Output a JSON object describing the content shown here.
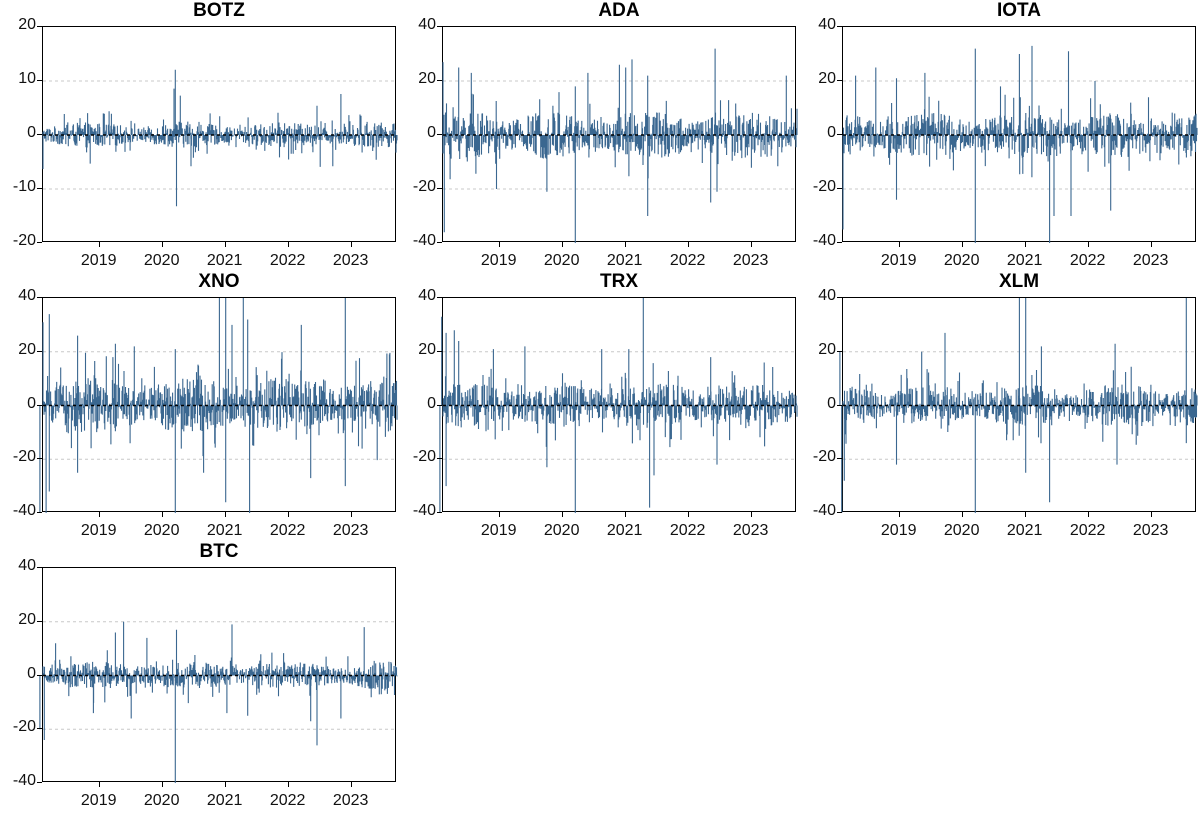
{
  "chart_data": [
    {
      "type": "line",
      "title": "BOTZ",
      "xlabel": "",
      "ylabel": "",
      "ylim": [
        -20,
        20
      ],
      "yticks": [
        -20,
        -10,
        0,
        10,
        20
      ],
      "xticks": [
        "2019",
        "2020",
        "2021",
        "2022",
        "2023"
      ],
      "xrange": [
        "2018-02",
        "2023-09"
      ],
      "grid": "horizontal dotted",
      "zero_line": "dashed black",
      "scale": 1.8,
      "spikes": [
        {
          "x": 2018.1,
          "y": -6.3
        },
        {
          "x": 2018.85,
          "y": -5.3
        },
        {
          "x": 2019.15,
          "y": 4.4
        },
        {
          "x": 2020.2,
          "y": 12.1
        },
        {
          "x": 2020.18,
          "y": 8.6
        },
        {
          "x": 2020.22,
          "y": -13.2
        },
        {
          "x": 2020.28,
          "y": 7.3
        },
        {
          "x": 2020.45,
          "y": -5.8
        },
        {
          "x": 2022.45,
          "y": 5.4
        },
        {
          "x": 2022.5,
          "y": -5.9
        },
        {
          "x": 2022.83,
          "y": 7.6
        },
        {
          "x": 2022.7,
          "y": -5.8
        }
      ]
    },
    {
      "type": "line",
      "title": "ADA",
      "ylim": [
        -40,
        40
      ],
      "yticks": [
        -40,
        -20,
        0,
        20,
        40
      ],
      "xticks": [
        "2019",
        "2020",
        "2021",
        "2022",
        "2023"
      ],
      "xrange": [
        "2018-02",
        "2023-09"
      ],
      "scale": 7,
      "spikes": [
        {
          "x": 2018.1,
          "y": 27
        },
        {
          "x": 2018.12,
          "y": -36
        },
        {
          "x": 2018.35,
          "y": 25
        },
        {
          "x": 2018.55,
          "y": 23
        },
        {
          "x": 2018.95,
          "y": -20
        },
        {
          "x": 2019.75,
          "y": -21
        },
        {
          "x": 2020.2,
          "y": -40
        },
        {
          "x": 2020.2,
          "y": 18
        },
        {
          "x": 2020.4,
          "y": 23
        },
        {
          "x": 2020.9,
          "y": 26
        },
        {
          "x": 2021.0,
          "y": 25
        },
        {
          "x": 2021.1,
          "y": 28
        },
        {
          "x": 2021.35,
          "y": -30
        },
        {
          "x": 2021.35,
          "y": 22
        },
        {
          "x": 2022.35,
          "y": -25
        },
        {
          "x": 2022.42,
          "y": 32
        },
        {
          "x": 2022.45,
          "y": -21
        },
        {
          "x": 2023.55,
          "y": 22
        }
      ]
    },
    {
      "type": "line",
      "title": "IOTA",
      "ylim": [
        -40,
        40
      ],
      "yticks": [
        -40,
        -20,
        0,
        20,
        40
      ],
      "xticks": [
        "2019",
        "2020",
        "2021",
        "2022",
        "2023"
      ],
      "xrange": [
        "2018-02",
        "2023-09"
      ],
      "scale": 6.5,
      "spikes": [
        {
          "x": 2018.1,
          "y": -35
        },
        {
          "x": 2018.3,
          "y": 22
        },
        {
          "x": 2018.62,
          "y": 25
        },
        {
          "x": 2018.95,
          "y": 21
        },
        {
          "x": 2018.95,
          "y": -24
        },
        {
          "x": 2019.4,
          "y": 23
        },
        {
          "x": 2020.2,
          "y": 32
        },
        {
          "x": 2020.2,
          "y": -40
        },
        {
          "x": 2020.6,
          "y": 18
        },
        {
          "x": 2020.9,
          "y": 30
        },
        {
          "x": 2021.1,
          "y": 33
        },
        {
          "x": 2021.38,
          "y": -40
        },
        {
          "x": 2021.45,
          "y": -30
        },
        {
          "x": 2021.68,
          "y": 31
        },
        {
          "x": 2021.72,
          "y": -30
        },
        {
          "x": 2022.1,
          "y": 20
        },
        {
          "x": 2022.35,
          "y": -28
        },
        {
          "x": 2022.95,
          "y": 14
        }
      ]
    },
    {
      "type": "line",
      "title": "XNO",
      "ylim": [
        -40,
        40
      ],
      "yticks": [
        -40,
        -20,
        0,
        20,
        40
      ],
      "xticks": [
        "2019",
        "2020",
        "2021",
        "2022",
        "2023"
      ],
      "xrange": [
        "2018-02",
        "2023-09"
      ],
      "scale": 8,
      "spikes": [
        {
          "x": 2018.05,
          "y": -40
        },
        {
          "x": 2018.1,
          "y": 31
        },
        {
          "x": 2018.15,
          "y": -40
        },
        {
          "x": 2018.2,
          "y": 34
        },
        {
          "x": 2018.2,
          "y": -32
        },
        {
          "x": 2018.65,
          "y": 26
        },
        {
          "x": 2018.65,
          "y": -25
        },
        {
          "x": 2019.25,
          "y": 23
        },
        {
          "x": 2019.55,
          "y": 22
        },
        {
          "x": 2020.2,
          "y": 21
        },
        {
          "x": 2020.2,
          "y": -40
        },
        {
          "x": 2020.65,
          "y": -25
        },
        {
          "x": 2020.9,
          "y": 40
        },
        {
          "x": 2021.0,
          "y": 40
        },
        {
          "x": 2021.0,
          "y": -36
        },
        {
          "x": 2021.1,
          "y": 30
        },
        {
          "x": 2021.28,
          "y": 40
        },
        {
          "x": 2021.35,
          "y": 32
        },
        {
          "x": 2021.38,
          "y": -40
        },
        {
          "x": 2022.2,
          "y": 30
        },
        {
          "x": 2022.35,
          "y": -27
        },
        {
          "x": 2022.9,
          "y": 40
        },
        {
          "x": 2022.9,
          "y": -30
        },
        {
          "x": 2023.6,
          "y": 19
        }
      ]
    },
    {
      "type": "line",
      "title": "TRX",
      "ylim": [
        -40,
        40
      ],
      "yticks": [
        -40,
        -20,
        0,
        20,
        40
      ],
      "xticks": [
        "2019",
        "2020",
        "2021",
        "2022",
        "2023"
      ],
      "xrange": [
        "2018-02",
        "2023-09"
      ],
      "scale": 6.5,
      "spikes": [
        {
          "x": 2018.05,
          "y": -40
        },
        {
          "x": 2018.08,
          "y": 33
        },
        {
          "x": 2018.15,
          "y": 27
        },
        {
          "x": 2018.15,
          "y": -30
        },
        {
          "x": 2018.28,
          "y": 28
        },
        {
          "x": 2018.35,
          "y": 24
        },
        {
          "x": 2018.9,
          "y": 21
        },
        {
          "x": 2019.4,
          "y": 22
        },
        {
          "x": 2019.75,
          "y": -23
        },
        {
          "x": 2020.2,
          "y": -40
        },
        {
          "x": 2020.62,
          "y": 21
        },
        {
          "x": 2021.05,
          "y": 21
        },
        {
          "x": 2021.28,
          "y": 40
        },
        {
          "x": 2021.38,
          "y": -38
        },
        {
          "x": 2021.45,
          "y": -26
        },
        {
          "x": 2022.35,
          "y": 18
        },
        {
          "x": 2022.45,
          "y": -22
        },
        {
          "x": 2023.2,
          "y": 16
        }
      ]
    },
    {
      "type": "line",
      "title": "XLM",
      "ylim": [
        -40,
        40
      ],
      "yticks": [
        -40,
        -20,
        0,
        20,
        40
      ],
      "xticks": [
        "2019",
        "2020",
        "2021",
        "2022",
        "2023"
      ],
      "xrange": [
        "2018-02",
        "2023-09"
      ],
      "scale": 6,
      "spikes": [
        {
          "x": 2018.05,
          "y": 20
        },
        {
          "x": 2018.08,
          "y": -40
        },
        {
          "x": 2018.12,
          "y": -28
        },
        {
          "x": 2018.95,
          "y": -22
        },
        {
          "x": 2019.35,
          "y": 20
        },
        {
          "x": 2019.72,
          "y": 27
        },
        {
          "x": 2020.2,
          "y": -40
        },
        {
          "x": 2020.9,
          "y": 40
        },
        {
          "x": 2021.0,
          "y": 40
        },
        {
          "x": 2021.0,
          "y": -25
        },
        {
          "x": 2021.25,
          "y": 22
        },
        {
          "x": 2021.38,
          "y": -36
        },
        {
          "x": 2022.42,
          "y": 23
        },
        {
          "x": 2022.45,
          "y": -22
        },
        {
          "x": 2023.55,
          "y": 40
        },
        {
          "x": 2023.55,
          "y": -14
        }
      ]
    },
    {
      "type": "line",
      "title": "BTC",
      "ylim": [
        -40,
        40
      ],
      "yticks": [
        -40,
        -20,
        0,
        20,
        40
      ],
      "xticks": [
        "2019",
        "2020",
        "2021",
        "2022",
        "2023"
      ],
      "xrange": [
        "2018-02",
        "2023-09"
      ],
      "scale": 4,
      "spikes": [
        {
          "x": 2018.05,
          "y": -20
        },
        {
          "x": 2018.12,
          "y": -24
        },
        {
          "x": 2018.3,
          "y": 12
        },
        {
          "x": 2018.9,
          "y": -14
        },
        {
          "x": 2019.25,
          "y": 16
        },
        {
          "x": 2019.38,
          "y": 20
        },
        {
          "x": 2019.5,
          "y": -16
        },
        {
          "x": 2019.75,
          "y": 14
        },
        {
          "x": 2020.2,
          "y": -40
        },
        {
          "x": 2020.22,
          "y": 17
        },
        {
          "x": 2021.02,
          "y": -14
        },
        {
          "x": 2021.1,
          "y": 19
        },
        {
          "x": 2021.35,
          "y": -15
        },
        {
          "x": 2022.35,
          "y": -17
        },
        {
          "x": 2022.45,
          "y": -26
        },
        {
          "x": 2022.83,
          "y": -16
        },
        {
          "x": 2023.2,
          "y": 18
        }
      ]
    }
  ],
  "style": {
    "line_color": "#3a6790",
    "grid_color": "#c8c8c8",
    "zero_line_color": "#000000"
  }
}
